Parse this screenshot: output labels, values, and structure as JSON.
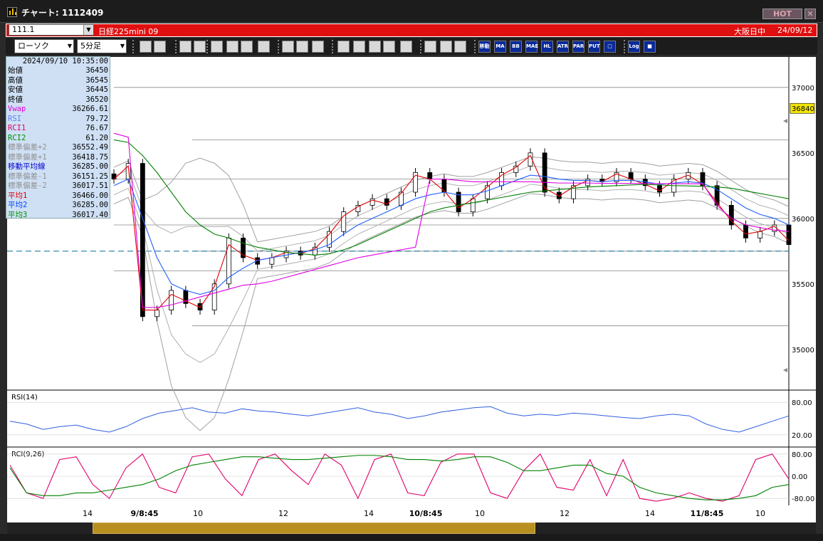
{
  "window": {
    "title": "チャート: 1112409",
    "hot_label": "HOT",
    "close_label": "✕"
  },
  "header": {
    "code": "111.1",
    "symbol": "日経225mini 09",
    "market": "大阪日中",
    "date": "24/09/12"
  },
  "toolbar": {
    "chart_type": "ローソク",
    "interval": "5分足",
    "indicator_buttons": [
      "移動",
      "MA",
      "BB",
      "MAE",
      "HL",
      "ATR",
      "PAR",
      "PUT",
      "□",
      "Log",
      "■"
    ]
  },
  "info": {
    "datetime": "2024/09/10  10:35:00",
    "rows": [
      {
        "label": "始値",
        "value": "36450",
        "color": "#000000"
      },
      {
        "label": "高値",
        "value": "36545",
        "color": "#000000"
      },
      {
        "label": "安値",
        "value": "36445",
        "color": "#000000"
      },
      {
        "label": "終値",
        "value": "36520",
        "color": "#000000"
      },
      {
        "label": "Vwap",
        "value": "36266.61",
        "color": "#e000e0"
      },
      {
        "label": "RSI",
        "value": "79.72",
        "color": "#6080ff"
      },
      {
        "label": "RCI1",
        "value": "76.67",
        "color": "#e0006a"
      },
      {
        "label": "RCI2",
        "value": "61.20",
        "color": "#009000"
      },
      {
        "label": "標準偏差+2",
        "value": "36552.49",
        "color": "#909090"
      },
      {
        "label": "標準偏差+1",
        "value": "36418.75",
        "color": "#909090"
      },
      {
        "label": "移動平均線",
        "value": "36285.00",
        "color": "#0000d0"
      },
      {
        "label": "標準偏差-1",
        "value": "36151.25",
        "color": "#909090"
      },
      {
        "label": "標準偏差-2",
        "value": "36017.51",
        "color": "#909090"
      },
      {
        "label": "平均1",
        "value": "36466.00",
        "color": "#e00000"
      },
      {
        "label": "平均2",
        "value": "36285.00",
        "color": "#0040ff"
      },
      {
        "label": "平均3",
        "value": "36017.40",
        "color": "#009000"
      }
    ]
  },
  "chart_data": [
    {
      "type": "candlestick",
      "title": "",
      "y_ticks": [
        "37000",
        "36500",
        "36000",
        "35500",
        "35000"
      ],
      "ylim": [
        34700,
        37200
      ],
      "current_price": "36840",
      "reference_price": 35750,
      "series": [
        {
          "name": "終値",
          "color": "#000000",
          "values": [
            36300,
            36420,
            35250,
            35300,
            35450,
            35350,
            35300,
            35500,
            35850,
            35700,
            35650,
            35700,
            35750,
            35720,
            35780,
            35900,
            36050,
            36100,
            36150,
            36100,
            36200,
            36350,
            36300,
            36200,
            36050,
            36150,
            36250,
            36350,
            36400,
            36500,
            36200,
            36150,
            36250,
            36300,
            36280,
            36350,
            36300,
            36250,
            36200,
            36300,
            36350,
            36250,
            36100,
            35950,
            35850,
            35900,
            35950,
            35800
          ]
        },
        {
          "name": "平均1",
          "color": "#e00000",
          "values": [
            36300,
            36400,
            35300,
            35300,
            35420,
            35370,
            35320,
            35480,
            35800,
            35720,
            35680,
            35700,
            35740,
            35730,
            35770,
            35880,
            36020,
            36090,
            36140,
            36110,
            36190,
            36330,
            36300,
            36210,
            36080,
            36150,
            36240,
            36330,
            36390,
            36480,
            36230,
            36170,
            36240,
            36290,
            36280,
            36340,
            36300,
            36260,
            36210,
            36290,
            36330,
            36260,
            36120,
            35980,
            35880,
            35900,
            35940,
            35830
          ]
        },
        {
          "name": "平均2",
          "color": "#2060ff",
          "values": [
            36250,
            36300,
            36000,
            35700,
            35500,
            35450,
            35420,
            35450,
            35550,
            35620,
            35680,
            35700,
            35720,
            35740,
            35760,
            35800,
            35880,
            35950,
            36000,
            36050,
            36100,
            36150,
            36180,
            36200,
            36180,
            36180,
            36210,
            36250,
            36290,
            36330,
            36320,
            36300,
            36290,
            36290,
            36280,
            36290,
            36290,
            36280,
            36260,
            36270,
            36280,
            36270,
            36220,
            36150,
            36080,
            36030,
            36000,
            35950
          ]
        },
        {
          "name": "平均3",
          "color": "#008000",
          "values": [
            36600,
            36580,
            36480,
            36350,
            36200,
            36050,
            35950,
            35880,
            35850,
            35810,
            35780,
            35760,
            35740,
            35730,
            35720,
            35730,
            35760,
            35800,
            35850,
            35900,
            35950,
            36000,
            36050,
            36080,
            36100,
            36120,
            36140,
            36160,
            36180,
            36200,
            36210,
            36220,
            36230,
            36240,
            36245,
            36250,
            36255,
            36260,
            36255,
            36250,
            36248,
            36245,
            36240,
            36230,
            36210,
            36190,
            36170,
            36150
          ]
        },
        {
          "name": "Vwap",
          "color": "#e000e0",
          "values": [
            36650,
            36620,
            35320,
            35320,
            35340,
            35370,
            35400,
            35430,
            35460,
            35490,
            35500,
            35520,
            35550,
            35580,
            35610,
            35640,
            35670,
            35700,
            35720,
            35740,
            35760,
            35780,
            36300,
            36300,
            36290,
            36280,
            36280,
            36280,
            36280,
            36280,
            36275,
            36270,
            36270,
            36270,
            36268,
            36267,
            36267,
            36266,
            36265,
            36265,
            36264,
            36264,
            36100,
            36000,
            35950,
            35930,
            35910,
            35900
          ]
        }
      ],
      "bollinger": {
        "name": "標準偏差",
        "color": "#a0a0a0"
      },
      "hlines": [
        37000,
        36600,
        36300,
        36000,
        35950,
        35750,
        35600,
        35180
      ]
    },
    {
      "type": "line",
      "title": "RSI(14)",
      "y_ticks": [
        "80.00",
        "20.00"
      ],
      "ylim": [
        0,
        100
      ],
      "series": [
        {
          "name": "RSI",
          "color": "#3060e0",
          "values": [
            45,
            40,
            30,
            35,
            38,
            30,
            25,
            35,
            50,
            60,
            65,
            70,
            62,
            60,
            68,
            64,
            62,
            58,
            55,
            60,
            65,
            70,
            62,
            58,
            50,
            55,
            62,
            66,
            70,
            72,
            60,
            55,
            58,
            56,
            60,
            58,
            55,
            52,
            50,
            55,
            58,
            55,
            40,
            30,
            25,
            35,
            45,
            55
          ]
        }
      ]
    },
    {
      "type": "line",
      "title": "RCI(9,26)",
      "y_ticks": [
        "80.00",
        "0.00",
        "-80.00"
      ],
      "ylim": [
        -100,
        100
      ],
      "series": [
        {
          "name": "RCI1",
          "color": "#e0006a",
          "values": [
            40,
            -60,
            -80,
            60,
            70,
            -30,
            -80,
            30,
            80,
            -40,
            -60,
            70,
            80,
            -10,
            -70,
            60,
            80,
            20,
            -30,
            80,
            40,
            -80,
            60,
            80,
            -60,
            -70,
            50,
            80,
            80,
            -60,
            -80,
            20,
            80,
            -40,
            -50,
            60,
            -70,
            60,
            -80,
            -90,
            -80,
            -60,
            -80,
            -90,
            -70,
            60,
            80,
            -10
          ]
        },
        {
          "name": "RCI2",
          "color": "#008000",
          "values": [
            30,
            -60,
            -70,
            -70,
            -60,
            -60,
            -50,
            -40,
            -30,
            -10,
            20,
            40,
            50,
            60,
            70,
            70,
            65,
            60,
            60,
            65,
            70,
            75,
            75,
            70,
            60,
            60,
            55,
            60,
            70,
            70,
            50,
            20,
            20,
            30,
            40,
            40,
            10,
            0,
            -40,
            -60,
            -70,
            -80,
            -85,
            -85,
            -80,
            -70,
            -40,
            -30
          ]
        }
      ]
    }
  ],
  "time_axis": {
    "labels": [
      "14",
      "9/8:45",
      "10",
      "12",
      "14",
      "10/8:45",
      "10",
      "12",
      "14",
      "11/8:45",
      "10"
    ]
  }
}
